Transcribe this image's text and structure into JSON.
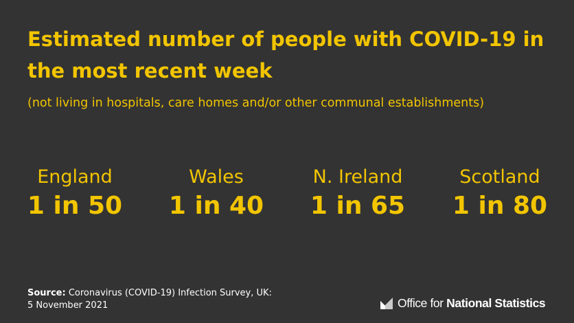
{
  "title": "Estimated number of people with COVID-19 in the most recent week",
  "subtitle": "(not living in hospitals, care homes and/or other communal establishments)",
  "colors": {
    "background": "#333333",
    "accent": "#F2C500",
    "text": "#FFFFFF"
  },
  "stats": [
    {
      "name": "England",
      "value": "1 in 50"
    },
    {
      "name": "Wales",
      "value": "1 in 40"
    },
    {
      "name": "N. Ireland",
      "value": "1 in 65"
    },
    {
      "name": "Scotland",
      "value": "1 in 80"
    }
  ],
  "source": {
    "label": "Source:",
    "text": " Coronavirus (COVID-19) Infection Survey, UK:",
    "date": "5 November 2021"
  },
  "logo": {
    "icon": "ons-logo-icon",
    "text_regular": "Office for ",
    "text_bold": "National Statistics"
  }
}
